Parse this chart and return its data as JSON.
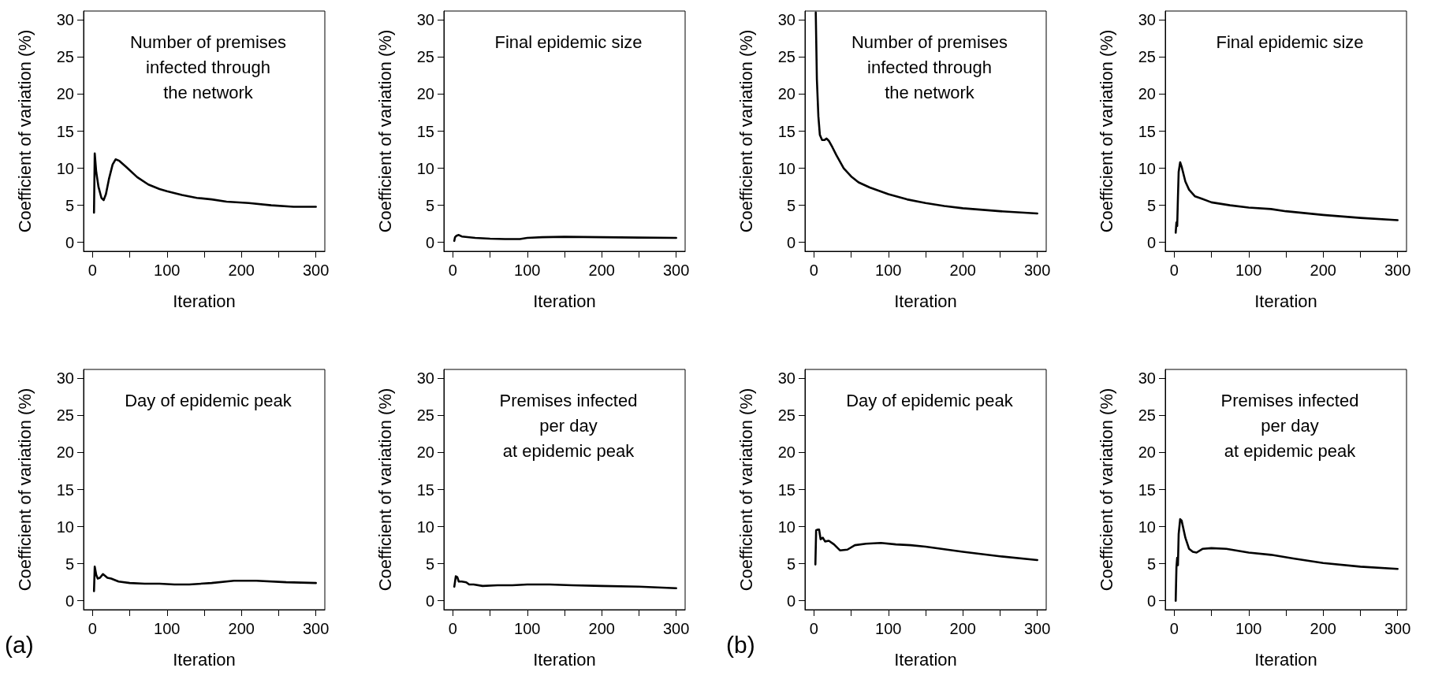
{
  "chart_data": [
    {
      "type": "line",
      "title": "Number of premises\ninfected through\nthe network",
      "xlabel": "Iteration",
      "ylabel": "Coefficient of variation (%)",
      "color": "#000000",
      "xlim": [
        -12,
        312
      ],
      "ylim": [
        -1.2,
        31.2
      ],
      "xticks": [
        0,
        {
          "value": 50,
          "label": null
        },
        100,
        {
          "value": 150,
          "label": null
        },
        200,
        {
          "value": 250,
          "label": null
        },
        300
      ],
      "yticks": [
        0,
        5,
        10,
        15,
        20,
        25,
        30
      ],
      "x": [
        2,
        3,
        5,
        8,
        12,
        15,
        18,
        22,
        27,
        31,
        36,
        45,
        60,
        75,
        90,
        100,
        120,
        140,
        160,
        180,
        210,
        240,
        270,
        300
      ],
      "values": [
        4,
        12,
        9.5,
        7.5,
        6,
        5.7,
        6.5,
        8.5,
        10.5,
        11.2,
        11,
        10.2,
        8.8,
        7.8,
        7.2,
        6.9,
        6.4,
        6.0,
        5.8,
        5.5,
        5.3,
        5.0,
        4.8,
        4.8
      ]
    },
    {
      "type": "line",
      "title": "Final epidemic size",
      "xlabel": "Iteration",
      "ylabel": "Coefficient of variation (%)",
      "color": "#000000",
      "xlim": [
        -12,
        312
      ],
      "ylim": [
        -1.2,
        31.2
      ],
      "xticks": [
        0,
        {
          "value": 50,
          "label": null
        },
        100,
        {
          "value": 150,
          "label": null
        },
        200,
        {
          "value": 250,
          "label": null
        },
        300
      ],
      "yticks": [
        0,
        5,
        10,
        15,
        20,
        25,
        30
      ],
      "x": [
        2,
        3,
        5,
        8,
        12,
        30,
        50,
        70,
        90,
        100,
        120,
        150,
        200,
        250,
        300
      ],
      "values": [
        0.2,
        0.7,
        0.9,
        1.0,
        0.8,
        0.6,
        0.5,
        0.45,
        0.45,
        0.6,
        0.7,
        0.75,
        0.7,
        0.65,
        0.6
      ]
    },
    {
      "type": "line",
      "title": "Number of premises\ninfected through\nthe network",
      "xlabel": "Iteration",
      "ylabel": "Coefficient of variation (%)",
      "color": "#000000",
      "xlim": [
        -12,
        312
      ],
      "ylim": [
        -1.2,
        31.2
      ],
      "xticks": [
        0,
        {
          "value": 50,
          "label": null
        },
        100,
        {
          "value": 150,
          "label": null
        },
        200,
        {
          "value": 250,
          "label": null
        },
        300
      ],
      "yticks": [
        0,
        5,
        10,
        15,
        20,
        25,
        30
      ],
      "x": [
        2.5,
        4,
        6,
        8,
        11,
        14,
        17,
        20,
        25,
        30,
        40,
        50,
        60,
        75,
        100,
        125,
        150,
        175,
        200,
        250,
        300
      ],
      "values": [
        31,
        22,
        17,
        14.5,
        13.8,
        13.8,
        14,
        13.7,
        12.8,
        11.8,
        10,
        8.9,
        8.1,
        7.4,
        6.5,
        5.8,
        5.3,
        4.9,
        4.6,
        4.2,
        3.9
      ]
    },
    {
      "type": "line",
      "title": "Final epidemic size",
      "xlabel": "Iteration",
      "ylabel": "Coefficient of variation (%)",
      "color": "#000000",
      "xlim": [
        -12,
        312
      ],
      "ylim": [
        -1.2,
        31.2
      ],
      "xticks": [
        0,
        {
          "value": 50,
          "label": null
        },
        100,
        {
          "value": 150,
          "label": null
        },
        200,
        {
          "value": 250,
          "label": null
        },
        300
      ],
      "yticks": [
        0,
        5,
        10,
        15,
        20,
        25,
        30
      ],
      "x": [
        2,
        3,
        4,
        5,
        6,
        8,
        10,
        15,
        20,
        28,
        37,
        50,
        75,
        100,
        130,
        150,
        200,
        250,
        300
      ],
      "values": [
        1.3,
        2.7,
        2.2,
        6,
        9.5,
        10.8,
        10.2,
        8.2,
        7.1,
        6.2,
        5.9,
        5.4,
        5.0,
        4.7,
        4.5,
        4.2,
        3.7,
        3.3,
        3.0
      ]
    },
    {
      "type": "line",
      "title": "Day of epidemic peak",
      "xlabel": "Iteration",
      "ylabel": "Coefficient of variation (%)",
      "annotations": [
        "(a)"
      ],
      "color": "#000000",
      "xlim": [
        -12,
        312
      ],
      "ylim": [
        -1.2,
        31.2
      ],
      "xticks": [
        0,
        {
          "value": 50,
          "label": null
        },
        100,
        {
          "value": 150,
          "label": null
        },
        200,
        {
          "value": 250,
          "label": null
        },
        300
      ],
      "yticks": [
        0,
        5,
        10,
        15,
        20,
        25,
        30
      ],
      "x": [
        2,
        3,
        5,
        7,
        10,
        14,
        20,
        25,
        35,
        50,
        70,
        90,
        110,
        130,
        160,
        190,
        220,
        260,
        300
      ],
      "values": [
        1.3,
        4.6,
        3.5,
        3.0,
        3.1,
        3.6,
        3.1,
        3.0,
        2.6,
        2.4,
        2.3,
        2.3,
        2.2,
        2.2,
        2.4,
        2.7,
        2.7,
        2.5,
        2.4
      ]
    },
    {
      "type": "line",
      "title": "Premises infected\nper day\nat epidemic peak",
      "xlabel": "Iteration",
      "ylabel": "Coefficient of variation (%)",
      "color": "#000000",
      "xlim": [
        -12,
        312
      ],
      "ylim": [
        -1.2,
        31.2
      ],
      "xticks": [
        0,
        {
          "value": 50,
          "label": null
        },
        100,
        {
          "value": 150,
          "label": null
        },
        200,
        {
          "value": 250,
          "label": null
        },
        300
      ],
      "yticks": [
        0,
        5,
        10,
        15,
        20,
        25,
        30
      ],
      "x": [
        2,
        4,
        6,
        8,
        12,
        18,
        22,
        28,
        40,
        60,
        80,
        100,
        130,
        160,
        200,
        250,
        300
      ],
      "values": [
        1.9,
        3.3,
        3.2,
        2.6,
        2.6,
        2.5,
        2.2,
        2.2,
        2.0,
        2.1,
        2.1,
        2.2,
        2.2,
        2.1,
        2.0,
        1.9,
        1.7
      ]
    },
    {
      "type": "line",
      "title": "Day of epidemic peak",
      "xlabel": "Iteration",
      "ylabel": "Coefficient of variation (%)",
      "annotations": [
        "(b)"
      ],
      "color": "#000000",
      "xlim": [
        -12,
        312
      ],
      "ylim": [
        -1.2,
        31.2
      ],
      "xticks": [
        0,
        {
          "value": 50,
          "label": null
        },
        100,
        {
          "value": 150,
          "label": null
        },
        200,
        {
          "value": 250,
          "label": null
        },
        300
      ],
      "yticks": [
        0,
        5,
        10,
        15,
        20,
        25,
        30
      ],
      "x": [
        2,
        3,
        5,
        7,
        9,
        12,
        15,
        20,
        27,
        35,
        45,
        55,
        70,
        90,
        110,
        130,
        150,
        200,
        250,
        300
      ],
      "values": [
        4.9,
        9.5,
        9.6,
        9.6,
        8.3,
        8.5,
        8.0,
        8.1,
        7.6,
        6.8,
        6.9,
        7.5,
        7.7,
        7.8,
        7.6,
        7.5,
        7.3,
        6.6,
        6.0,
        5.5
      ]
    },
    {
      "type": "line",
      "title": "Premises infected\nper day\nat epidemic peak",
      "xlabel": "Iteration",
      "ylabel": "Coefficient of variation (%)",
      "color": "#000000",
      "xlim": [
        -12,
        312
      ],
      "ylim": [
        -1.2,
        31.2
      ],
      "xticks": [
        0,
        {
          "value": 50,
          "label": null
        },
        100,
        {
          "value": 150,
          "label": null
        },
        200,
        {
          "value": 250,
          "label": null
        },
        300
      ],
      "yticks": [
        0,
        5,
        10,
        15,
        20,
        25,
        30
      ],
      "x": [
        2,
        3,
        4,
        5,
        6,
        8,
        10,
        15,
        20,
        25,
        30,
        38,
        50,
        70,
        100,
        130,
        160,
        200,
        250,
        300
      ],
      "values": [
        0,
        4.5,
        5.8,
        4.8,
        9,
        11,
        10.8,
        8.5,
        7,
        6.6,
        6.5,
        7,
        7.1,
        7.0,
        6.5,
        6.2,
        5.7,
        5.1,
        4.6,
        4.3
      ]
    }
  ]
}
